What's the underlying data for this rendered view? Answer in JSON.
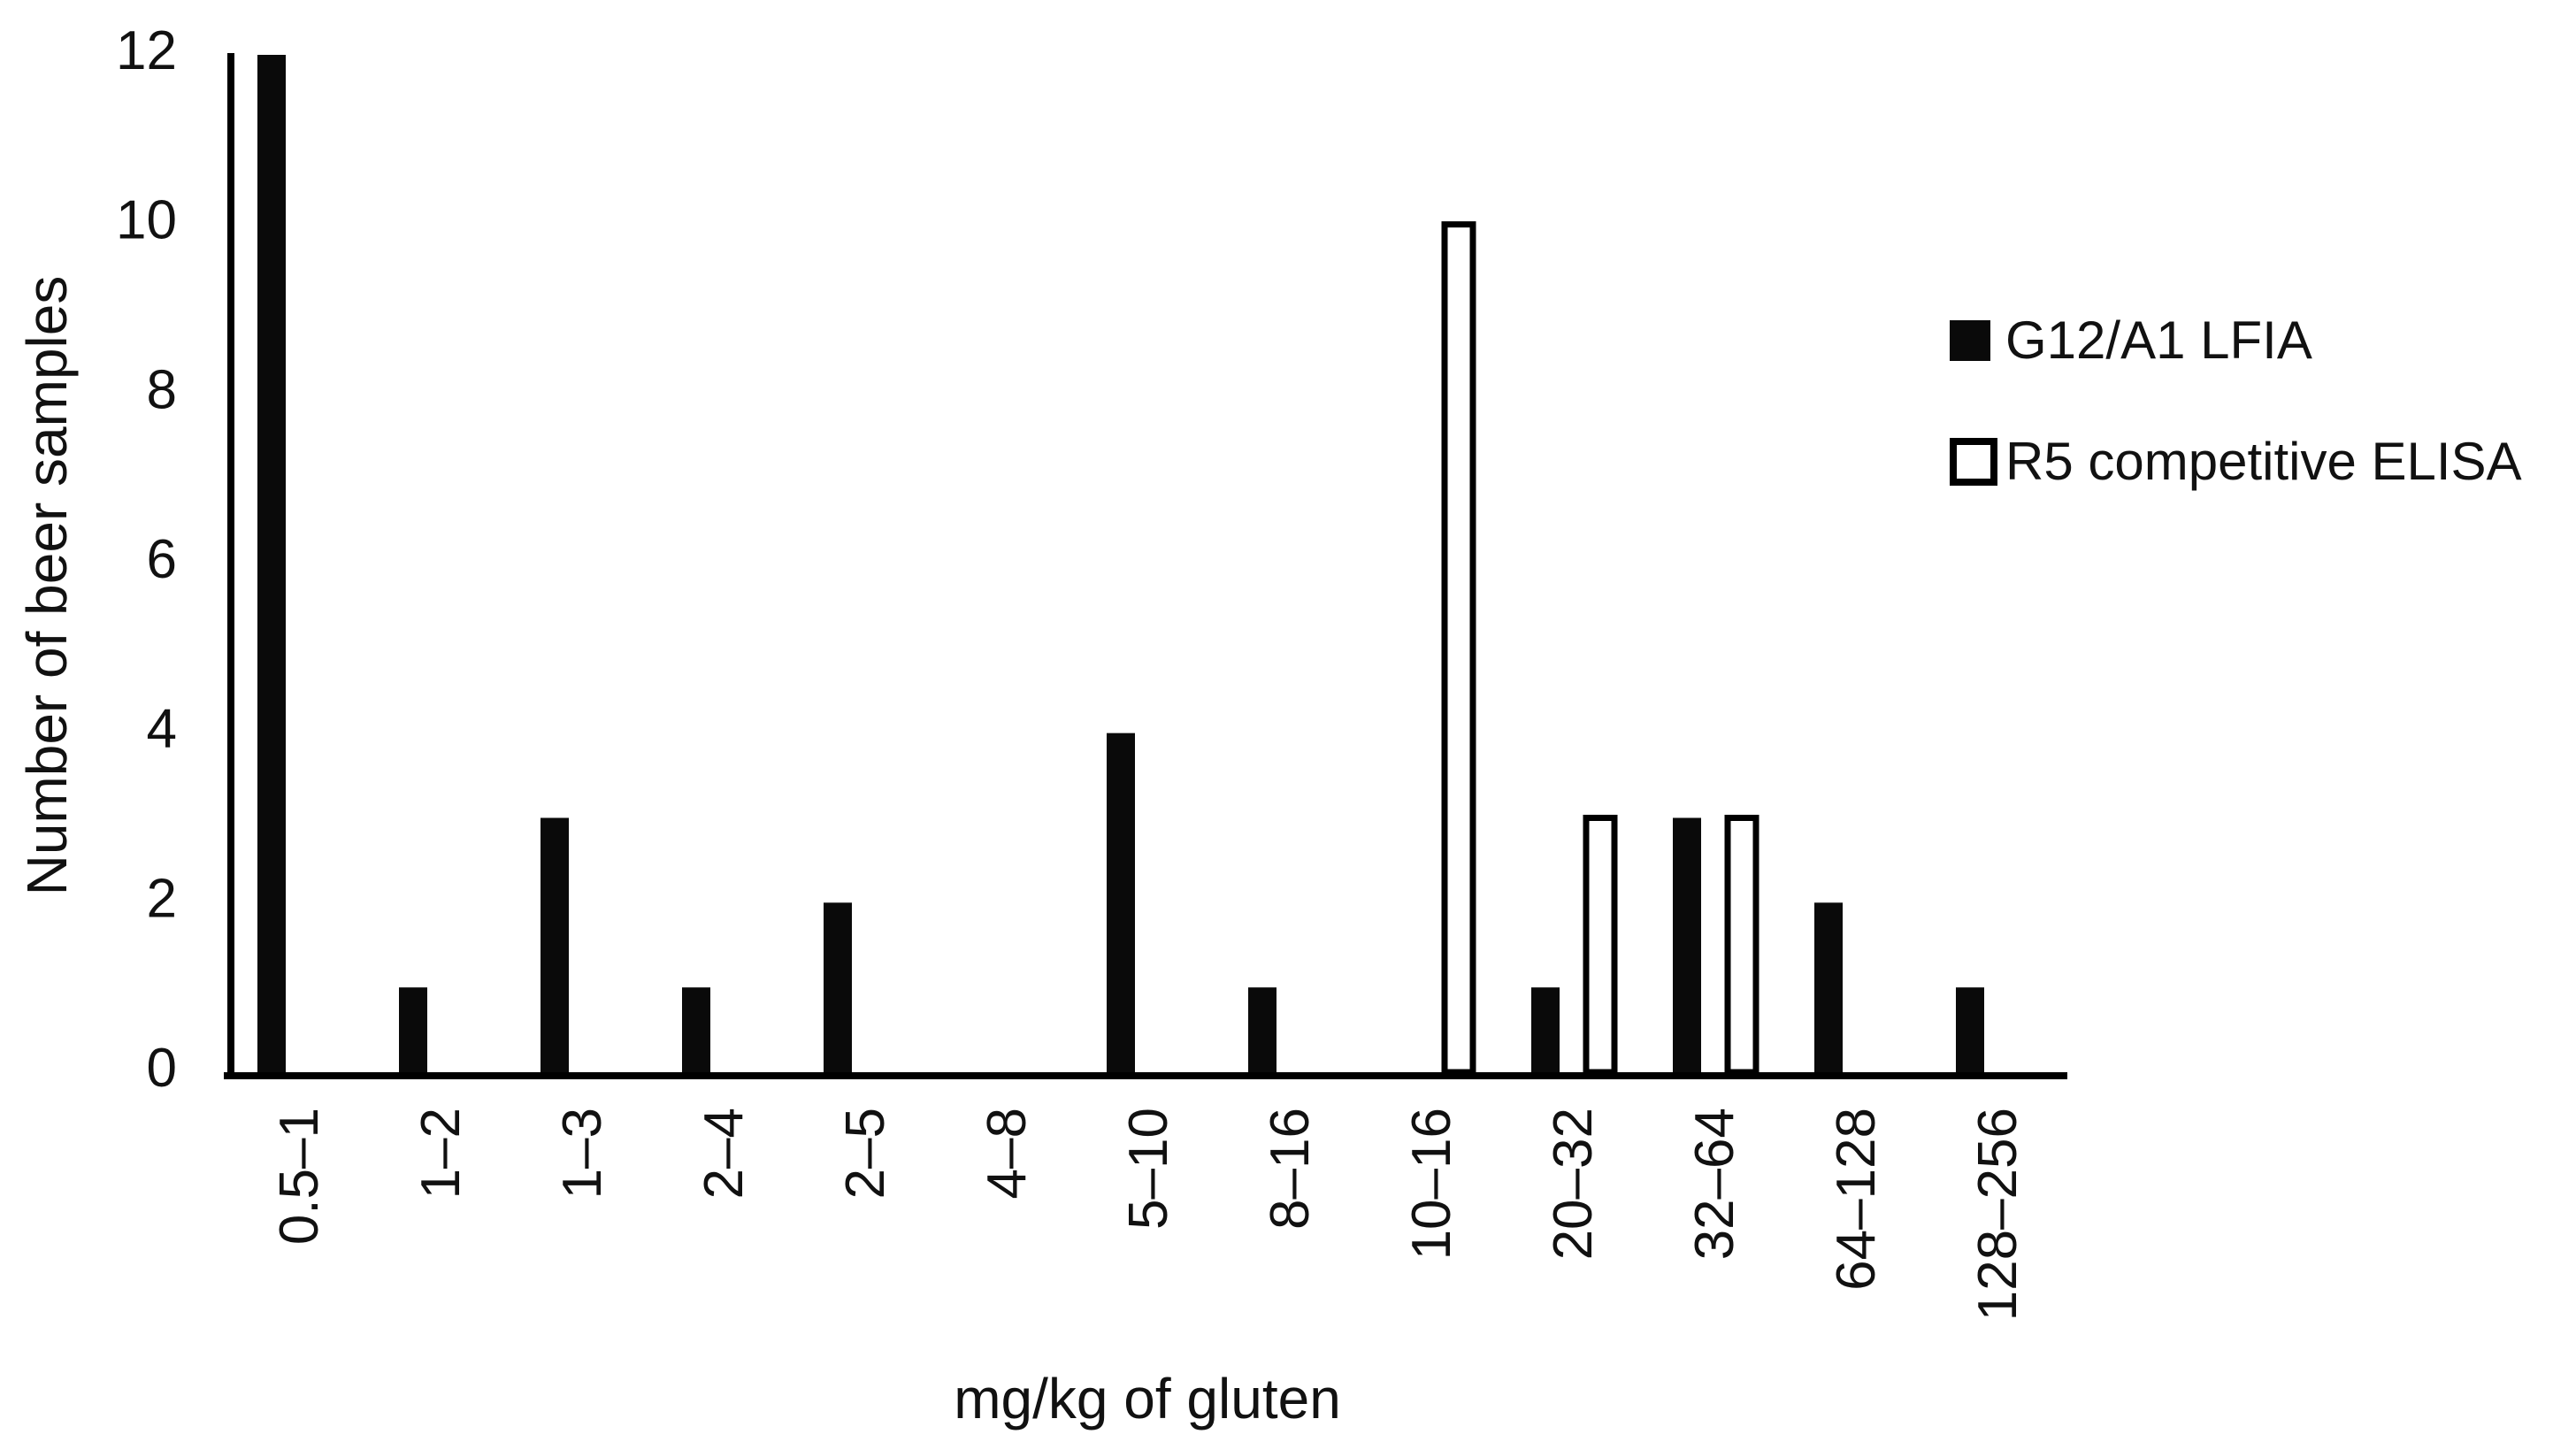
{
  "chart_data": {
    "type": "bar",
    "title": "",
    "xlabel": "mg/kg of gluten",
    "ylabel": "Number of beer samples",
    "categories": [
      "0.5–1",
      "1–2",
      "1–3",
      "2–4",
      "2–5",
      "4–8",
      "5–10",
      "8–16",
      "10–16",
      "20–32",
      "32–64",
      "64–128",
      "128–256"
    ],
    "series": [
      {
        "name": "G12/A1 LFIA",
        "style": "solid-black",
        "values": [
          12,
          1,
          3,
          1,
          2,
          0,
          4,
          1,
          0,
          1,
          3,
          2,
          1
        ]
      },
      {
        "name": "R5 competitive ELISA",
        "style": "white-outlined",
        "values": [
          0,
          0,
          0,
          0,
          0,
          0,
          0,
          0,
          10,
          3,
          3,
          0,
          0
        ]
      }
    ],
    "yticks": [
      0,
      2,
      4,
      6,
      8,
      10,
      12
    ],
    "ylim": [
      0,
      12
    ],
    "grid": false,
    "legend_position": "right",
    "legend": [
      {
        "swatch": "black-filled-square",
        "label": "G12/A1 LFIA"
      },
      {
        "swatch": "white-outlined-square",
        "label": "R5 competitive ELISA"
      }
    ],
    "colors": {
      "bar_black": "#0a0a0a",
      "bar_white_fill": "#ffffff",
      "outline": "#000000",
      "text": "#111111",
      "background": "#ffffff"
    }
  }
}
